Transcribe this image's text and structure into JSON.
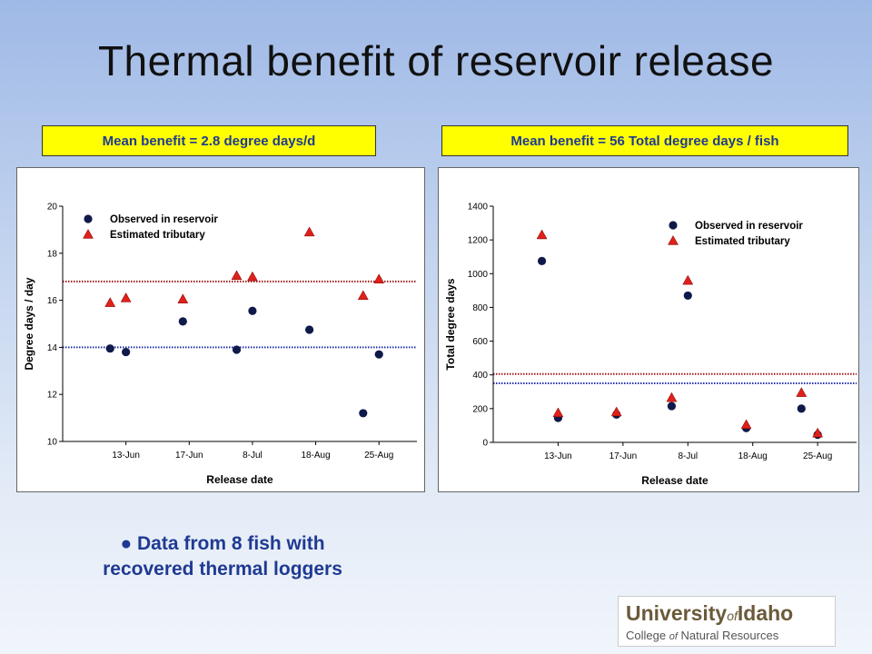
{
  "title": "Thermal benefit of reservoir release",
  "banners": {
    "left": "Mean benefit = 2.8 degree days/d",
    "right": "Mean benefit = 56 Total degree days / fish"
  },
  "note": {
    "bullet": "●",
    "line1": "Data from 8 fish with",
    "line2": "recovered thermal loggers"
  },
  "logo": {
    "university": "University",
    "of": "of",
    "idaho": "Idaho",
    "college": "College",
    "college_of": "of",
    "natural_resources": "Natural Resources"
  },
  "colors": {
    "observed": "#0f1a4a",
    "estimated": "#e0201a",
    "observed_mean_line": "#2233aa",
    "estimated_mean_line": "#a01818",
    "logo_text": "#6b5a3a"
  },
  "chart_data": [
    {
      "type": "scatter",
      "xlabel": "Release date",
      "ylabel": "Degree days / day",
      "xticks": [
        "13-Jun",
        "17-Jun",
        "8-Jul",
        "18-Aug",
        "25-Aug"
      ],
      "ylim": [
        10,
        20
      ],
      "yticks": [
        10,
        12,
        14,
        16,
        18,
        20
      ],
      "legend_position": "top-left",
      "grid": false,
      "series": [
        {
          "name": "Observed in reservoir",
          "marker": "circle",
          "points": [
            {
              "x": 0.75,
              "y": 13.95
            },
            {
              "x": 1.0,
              "y": 13.8
            },
            {
              "x": 1.9,
              "y": 15.1
            },
            {
              "x": 2.75,
              "y": 13.9
            },
            {
              "x": 3.0,
              "y": 15.55
            },
            {
              "x": 3.9,
              "y": 14.75
            },
            {
              "x": 4.75,
              "y": 11.2
            },
            {
              "x": 5.0,
              "y": 13.7
            }
          ]
        },
        {
          "name": "Estimated tributary",
          "marker": "triangle",
          "points": [
            {
              "x": 0.75,
              "y": 15.9
            },
            {
              "x": 1.0,
              "y": 16.1
            },
            {
              "x": 1.9,
              "y": 16.05
            },
            {
              "x": 2.75,
              "y": 17.05
            },
            {
              "x": 3.0,
              "y": 17.0
            },
            {
              "x": 3.9,
              "y": 18.9
            },
            {
              "x": 4.75,
              "y": 16.2
            },
            {
              "x": 5.0,
              "y": 16.9
            }
          ]
        }
      ],
      "mean_lines": [
        {
          "y": 14.0,
          "color": "#2233aa"
        },
        {
          "y": 16.8,
          "color": "#a01818"
        }
      ]
    },
    {
      "type": "scatter",
      "xlabel": "Release date",
      "ylabel": "Total degree days",
      "xticks": [
        "13-Jun",
        "17-Jun",
        "8-Jul",
        "18-Aug",
        "25-Aug"
      ],
      "ylim": [
        0,
        1400
      ],
      "yticks": [
        0,
        200,
        400,
        600,
        800,
        1000,
        1200,
        1400
      ],
      "legend_position": "top-right",
      "grid": false,
      "series": [
        {
          "name": "Observed in reservoir",
          "marker": "circle",
          "points": [
            {
              "x": 0.75,
              "y": 1075
            },
            {
              "x": 1.0,
              "y": 145
            },
            {
              "x": 1.9,
              "y": 165
            },
            {
              "x": 2.75,
              "y": 215
            },
            {
              "x": 3.0,
              "y": 870
            },
            {
              "x": 3.9,
              "y": 85
            },
            {
              "x": 4.75,
              "y": 200
            },
            {
              "x": 5.0,
              "y": 45
            }
          ]
        },
        {
          "name": "Estimated tributary",
          "marker": "triangle",
          "points": [
            {
              "x": 0.75,
              "y": 1230
            },
            {
              "x": 1.0,
              "y": 175
            },
            {
              "x": 1.9,
              "y": 180
            },
            {
              "x": 2.75,
              "y": 265
            },
            {
              "x": 3.0,
              "y": 960
            },
            {
              "x": 3.9,
              "y": 105
            },
            {
              "x": 4.75,
              "y": 295
            },
            {
              "x": 5.0,
              "y": 55
            }
          ]
        }
      ],
      "mean_lines": [
        {
          "y": 350,
          "color": "#2233aa"
        },
        {
          "y": 405,
          "color": "#a01818"
        }
      ]
    }
  ]
}
